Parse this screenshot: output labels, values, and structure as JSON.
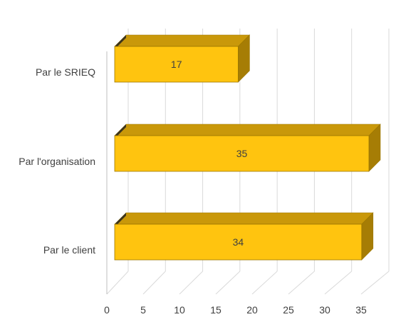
{
  "chart_data": {
    "type": "bar",
    "orientation": "horizontal",
    "style": "3d",
    "categories": [
      "Par le SRIEQ",
      "Par l'organisation",
      "Par le client"
    ],
    "values": [
      17,
      35,
      34
    ],
    "data_labels": [
      "17",
      "35",
      "34"
    ],
    "xlim": [
      0,
      35
    ],
    "xticks": [
      0,
      5,
      10,
      15,
      20,
      25,
      30,
      35
    ],
    "xtick_labels": [
      "0",
      "5",
      "10",
      "15",
      "20",
      "25",
      "30",
      "35"
    ],
    "title": "",
    "xlabel": "",
    "ylabel": "",
    "grid": true,
    "legend": "none",
    "colors": {
      "bar_front": "#FFC40F",
      "bar_top": "#C9980A",
      "bar_side": "#A67D05",
      "bar_edge": "#9C7700",
      "grid": "#D9D9D9",
      "axis_line": "#BFBFBF",
      "text": "#404040"
    }
  }
}
